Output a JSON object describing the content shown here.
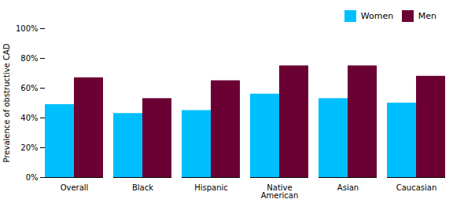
{
  "chart_data": {
    "type": "bar",
    "categories": [
      "Overall",
      "Black",
      "Hispanic",
      "Native\nAmerican",
      "Asian",
      "Caucasian"
    ],
    "series": [
      {
        "name": "Women",
        "color": "#00BFFF",
        "values": [
          49,
          43,
          45,
          56,
          53,
          50
        ]
      },
      {
        "name": "Men",
        "color": "#6B0033",
        "values": [
          67,
          53,
          65,
          75,
          75,
          68
        ]
      }
    ],
    "ylabel": "Prevalence of obstructive CAD",
    "ylim": [
      0,
      100
    ],
    "yticks": [
      {
        "value": 0,
        "label": "0%"
      },
      {
        "value": 20,
        "label": "20%"
      },
      {
        "value": 40,
        "label": "40%"
      },
      {
        "value": 60,
        "label": "60%"
      },
      {
        "value": 80,
        "label": "80%"
      },
      {
        "value": 100,
        "label": "100%"
      }
    ],
    "legend": "upper right"
  }
}
